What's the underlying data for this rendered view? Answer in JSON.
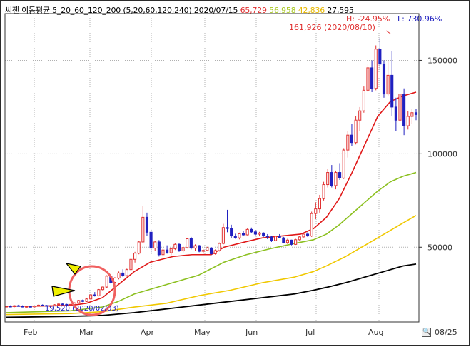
{
  "header": {
    "title": "씨젠 이동평균 5_20_60_120_200",
    "params": "(5,20,60,120,240)",
    "date": "2020/07/15",
    "values": [
      {
        "text": "65,729",
        "color": "#e03030"
      },
      {
        "text": "56,958",
        "color": "#a8c820"
      },
      {
        "text": "42,836",
        "color": "#e8b800"
      },
      {
        "text": "27,595",
        "color": "#000000"
      }
    ]
  },
  "annotations": {
    "high_pct": "H: -24.95%",
    "low_pct": "L: 730.96%",
    "high_value": "161,926 (2020/08/10)",
    "low_value": "19,520 (2020/02/03)"
  },
  "footer": {
    "date": "08/25"
  },
  "colors": {
    "up": "#e03030",
    "down": "#2020c0",
    "ma5": "#2020c0",
    "ma20": "#e01818",
    "ma60": "#8cc020",
    "ma120": "#f0c800",
    "ma240": "#000000",
    "circle": "#f06060",
    "arrow": "#f0f000"
  },
  "icons": {
    "zoom": "magnifier-icon",
    "arrow_up": "arrow-icon",
    "arrow_right": "arrow-icon"
  },
  "chart_data": {
    "type": "line",
    "x_ticks": [
      "Feb",
      "Mar",
      "Apr",
      "May",
      "Jun",
      "Jul",
      "Aug"
    ],
    "y_ticks": [
      "50000",
      "100000",
      "150000"
    ],
    "ylim": [
      10000,
      175000
    ],
    "series": [
      {
        "name": "5",
        "points": [
          [
            0,
            18000
          ],
          [
            10,
            18500
          ],
          [
            20,
            20000
          ],
          [
            25,
            22000
          ],
          [
            30,
            26000
          ],
          [
            33,
            32000
          ],
          [
            38,
            42000
          ],
          [
            42,
            52000
          ],
          [
            46,
            50000
          ],
          [
            52,
            47000
          ],
          [
            57,
            46000
          ],
          [
            62,
            48000
          ],
          [
            68,
            50000
          ],
          [
            75,
            53000
          ],
          [
            80,
            55000
          ],
          [
            86,
            57000
          ],
          [
            90,
            55000
          ],
          [
            96,
            58000
          ],
          [
            100,
            75000
          ],
          [
            104,
            92000
          ],
          [
            108,
            110000
          ],
          [
            112,
            135000
          ],
          [
            116,
            150000
          ],
          [
            120,
            130000
          ],
          [
            124,
            120000
          ],
          [
            128,
            122000
          ]
        ]
      },
      {
        "name": "20",
        "points": [
          [
            0,
            18500
          ],
          [
            10,
            18500
          ],
          [
            20,
            18800
          ],
          [
            25,
            20000
          ],
          [
            30,
            23000
          ],
          [
            35,
            30000
          ],
          [
            40,
            37000
          ],
          [
            45,
            42000
          ],
          [
            52,
            45000
          ],
          [
            58,
            46000
          ],
          [
            64,
            46000
          ],
          [
            68,
            50000
          ],
          [
            75,
            53000
          ],
          [
            80,
            55000
          ],
          [
            86,
            56000
          ],
          [
            92,
            57000
          ],
          [
            96,
            60000
          ],
          [
            100,
            66000
          ],
          [
            104,
            76000
          ],
          [
            108,
            90000
          ],
          [
            112,
            105000
          ],
          [
            116,
            120000
          ],
          [
            120,
            128000
          ],
          [
            124,
            131000
          ],
          [
            128,
            133000
          ]
        ]
      },
      {
        "name": "60",
        "points": [
          [
            0,
            15000
          ],
          [
            20,
            16000
          ],
          [
            30,
            18000
          ],
          [
            35,
            21000
          ],
          [
            40,
            25000
          ],
          [
            50,
            30000
          ],
          [
            60,
            35000
          ],
          [
            68,
            42000
          ],
          [
            75,
            46000
          ],
          [
            82,
            49000
          ],
          [
            90,
            52000
          ],
          [
            96,
            54000
          ],
          [
            100,
            57000
          ],
          [
            104,
            62000
          ],
          [
            108,
            68000
          ],
          [
            112,
            74000
          ],
          [
            116,
            80000
          ],
          [
            120,
            85000
          ],
          [
            124,
            88000
          ],
          [
            128,
            90000
          ]
        ]
      },
      {
        "name": "120",
        "points": [
          [
            0,
            14000
          ],
          [
            20,
            14500
          ],
          [
            30,
            15500
          ],
          [
            40,
            18000
          ],
          [
            50,
            20000
          ],
          [
            60,
            24000
          ],
          [
            70,
            27000
          ],
          [
            80,
            31000
          ],
          [
            90,
            34000
          ],
          [
            96,
            37000
          ],
          [
            100,
            40000
          ],
          [
            106,
            45000
          ],
          [
            112,
            51000
          ],
          [
            118,
            57000
          ],
          [
            124,
            63000
          ],
          [
            128,
            67000
          ]
        ]
      },
      {
        "name": "240",
        "points": [
          [
            0,
            12500
          ],
          [
            20,
            13000
          ],
          [
            30,
            13500
          ],
          [
            40,
            15000
          ],
          [
            50,
            17000
          ],
          [
            60,
            19000
          ],
          [
            70,
            21000
          ],
          [
            80,
            23000
          ],
          [
            90,
            25000
          ],
          [
            96,
            27000
          ],
          [
            100,
            28500
          ],
          [
            106,
            31000
          ],
          [
            112,
            34000
          ],
          [
            118,
            37000
          ],
          [
            124,
            40000
          ],
          [
            128,
            41000
          ]
        ]
      }
    ],
    "candles": [
      [
        18200,
        18800,
        17800,
        18400
      ],
      [
        18400,
        18900,
        18000,
        18200
      ],
      [
        18200,
        19000,
        17900,
        18700
      ],
      [
        18700,
        19200,
        18300,
        18500
      ],
      [
        18500,
        18900,
        17800,
        18000
      ],
      [
        18000,
        18600,
        17700,
        18300
      ],
      [
        18300,
        18700,
        17900,
        18100
      ],
      [
        18100,
        18800,
        17800,
        18600
      ],
      [
        18600,
        19300,
        18300,
        19000
      ],
      [
        19000,
        19400,
        18600,
        18800
      ],
      [
        18800,
        19100,
        18300,
        18500
      ],
      [
        18500,
        18900,
        18100,
        18700
      ],
      [
        18700,
        19500,
        18400,
        19200
      ],
      [
        19200,
        19900,
        18900,
        19600
      ],
      [
        19600,
        20100,
        19100,
        19400
      ],
      [
        19400,
        19700,
        18800,
        19000
      ],
      [
        19000,
        19600,
        18700,
        19400
      ],
      [
        19400,
        20500,
        19100,
        20200
      ],
      [
        20200,
        21800,
        19900,
        21500
      ],
      [
        21500,
        22000,
        20600,
        21000
      ],
      [
        21000,
        22600,
        20700,
        22300
      ],
      [
        22300,
        24800,
        22000,
        24500
      ],
      [
        24500,
        26000,
        23600,
        24000
      ],
      [
        24000,
        27600,
        23700,
        27300
      ],
      [
        27300,
        29000,
        26500,
        28700
      ],
      [
        28700,
        35000,
        28300,
        34500
      ],
      [
        34500,
        35500,
        30500,
        31200
      ],
      [
        31200,
        34000,
        30200,
        33500
      ],
      [
        33500,
        37000,
        32800,
        36200
      ],
      [
        36200,
        38200,
        34100,
        34800
      ],
      [
        34800,
        38500,
        34300,
        38000
      ],
      [
        38000,
        44000,
        37500,
        43500
      ],
      [
        43500,
        47500,
        41800,
        46800
      ],
      [
        46800,
        53500,
        46200,
        52800
      ],
      [
        52800,
        72000,
        52000,
        66000
      ],
      [
        66000,
        68500,
        56000,
        58000
      ],
      [
        58000,
        59500,
        47000,
        49500
      ],
      [
        49500,
        53500,
        48200,
        52800
      ],
      [
        52800,
        53800,
        45000,
        46000
      ],
      [
        46000,
        49500,
        44500,
        48500
      ],
      [
        48500,
        51000,
        46500,
        47000
      ],
      [
        47000,
        49800,
        45800,
        49200
      ],
      [
        49200,
        52200,
        48500,
        51500
      ],
      [
        51500,
        52000,
        47500,
        48000
      ],
      [
        48000,
        50500,
        47200,
        49800
      ],
      [
        49800,
        55000,
        49300,
        54500
      ],
      [
        54500,
        55500,
        48800,
        49500
      ],
      [
        49500,
        51500,
        48200,
        50800
      ],
      [
        50800,
        51200,
        47300,
        47800
      ],
      [
        47800,
        49000,
        46500,
        48300
      ],
      [
        48300,
        50200,
        47800,
        49600
      ],
      [
        49600,
        50100,
        45800,
        46500
      ],
      [
        46500,
        48800,
        46000,
        48200
      ],
      [
        48200,
        52500,
        47700,
        52000
      ],
      [
        52000,
        62500,
        51500,
        60500
      ],
      [
        60500,
        70000,
        58000,
        60000
      ],
      [
        60000,
        62000,
        55000,
        56000
      ],
      [
        56000,
        57200,
        54500,
        55000
      ],
      [
        55000,
        57800,
        54200,
        57200
      ],
      [
        57200,
        58500,
        56200,
        56600
      ],
      [
        56600,
        60000,
        56300,
        59500
      ],
      [
        59500,
        60500,
        57700,
        58200
      ],
      [
        58200,
        59200,
        56300,
        57000
      ],
      [
        57000,
        58200,
        55800,
        57600
      ],
      [
        57600,
        58000,
        55500,
        56000
      ],
      [
        56000,
        57000,
        54300,
        55500
      ],
      [
        55500,
        56000,
        52800,
        53500
      ],
      [
        53500,
        56000,
        53200,
        55800
      ],
      [
        55800,
        57000,
        54800,
        55000
      ],
      [
        55000,
        55500,
        52000,
        52500
      ],
      [
        52500,
        54500,
        51700,
        53800
      ],
      [
        53800,
        54000,
        51000,
        51500
      ],
      [
        51500,
        54500,
        51200,
        54000
      ],
      [
        54000,
        56000,
        53500,
        55500
      ],
      [
        55500,
        57500,
        55200,
        57000
      ],
      [
        57000,
        58000,
        55500,
        56000
      ],
      [
        56000,
        69000,
        55500,
        68000
      ],
      [
        68000,
        74000,
        65000,
        70500
      ],
      [
        70500,
        78000,
        68500,
        76000
      ],
      [
        76000,
        85000,
        75000,
        83500
      ],
      [
        83500,
        92000,
        82000,
        90000
      ],
      [
        90000,
        94000,
        82000,
        83000
      ],
      [
        83000,
        91000,
        81000,
        90000
      ],
      [
        90000,
        95000,
        86000,
        87000
      ],
      [
        87000,
        103000,
        86500,
        102000
      ],
      [
        102000,
        112000,
        98000,
        110000
      ],
      [
        110000,
        116000,
        104000,
        106000
      ],
      [
        106000,
        120000,
        105000,
        118000
      ],
      [
        118000,
        125000,
        112000,
        123000
      ],
      [
        123000,
        136000,
        122000,
        134000
      ],
      [
        134000,
        148000,
        133000,
        146000
      ],
      [
        146000,
        150000,
        133000,
        135000
      ],
      [
        135000,
        158000,
        134000,
        156000
      ],
      [
        156000,
        162000,
        145000,
        148000
      ],
      [
        148000,
        150000,
        130000,
        132000
      ],
      [
        132000,
        150000,
        131000,
        142000
      ],
      [
        142000,
        155000,
        120000,
        125000
      ],
      [
        125000,
        130000,
        112000,
        118000
      ],
      [
        118000,
        140000,
        117000,
        132000
      ],
      [
        132000,
        135000,
        110000,
        115000
      ],
      [
        115000,
        123000,
        113000,
        120000
      ],
      [
        120000,
        124000,
        116000,
        122000
      ],
      [
        122000,
        124000,
        118000,
        121000
      ]
    ]
  }
}
